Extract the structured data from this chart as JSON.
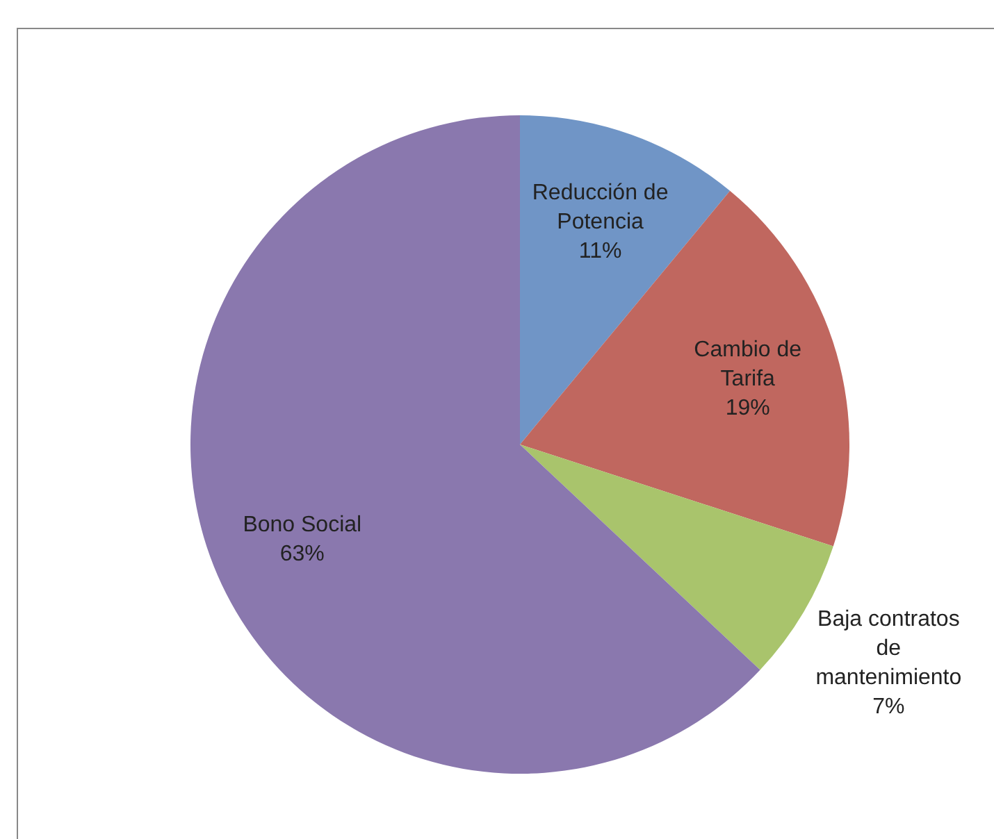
{
  "chart_data": {
    "type": "pie",
    "categories": [
      "Reducción de Potencia",
      "Cambio de Tarifa",
      "Baja contratos de mantenimiento",
      "Bono Social"
    ],
    "values": [
      11,
      19,
      7,
      63
    ],
    "colors": [
      "#7095c6",
      "#c0675f",
      "#a9c46c",
      "#8a78ae"
    ],
    "value_labels": [
      "11%",
      "19%",
      "7%",
      "63%"
    ]
  }
}
